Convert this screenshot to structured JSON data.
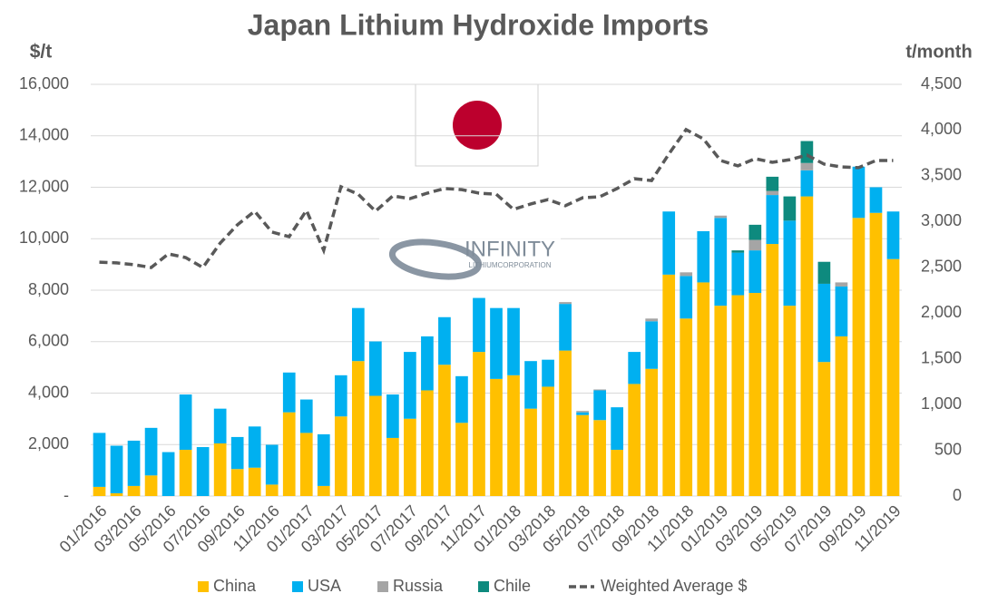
{
  "chart_data": {
    "type": "bar",
    "stacked": true,
    "title": "Japan Lithium Hydroxide Imports",
    "ylabel": "$/t",
    "y2label": "t/month",
    "categories": [
      "01/2016",
      null,
      "03/2016",
      null,
      "05/2016",
      null,
      "07/2016",
      null,
      "09/2016",
      null,
      "11/2016",
      null,
      "01/2017",
      null,
      "03/2017",
      null,
      "05/2017",
      null,
      "07/2017",
      null,
      "09/2017",
      null,
      "11/2017",
      null,
      "01/2018",
      null,
      "03/2018",
      null,
      "05/2018",
      null,
      "07/2018",
      null,
      "09/2018",
      null,
      "11/2018",
      null,
      "01/2019",
      null,
      "03/2019",
      null,
      "05/2019",
      null,
      "07/2019",
      null,
      "09/2019",
      null,
      "11/2019"
    ],
    "series": [
      {
        "name": "China",
        "color": "#ffc000",
        "axis": "y2",
        "values": [
          100,
          30,
          110,
          225,
          0,
          505,
          0,
          575,
          295,
          310,
          125,
          915,
          690,
          110,
          870,
          1475,
          1095,
          635,
          845,
          1155,
          1435,
          800,
          1575,
          1280,
          1320,
          955,
          1195,
          1590,
          885,
          830,
          505,
          1225,
          1390,
          2420,
          1940,
          2335,
          2080,
          2195,
          2220,
          2755,
          2080,
          3275,
          1465,
          1745,
          3040,
          3095,
          2590
        ]
      },
      {
        "name": "USA",
        "color": "#00b0f0",
        "axis": "y2",
        "values": [
          590,
          520,
          495,
          520,
          480,
          605,
          535,
          380,
          350,
          450,
          435,
          435,
          365,
          565,
          450,
          580,
          595,
          475,
          730,
          590,
          520,
          510,
          590,
          775,
          735,
          520,
          295,
          510,
          30,
          325,
          465,
          350,
          520,
          690,
          465,
          560,
          960,
          465,
          465,
          535,
          930,
          285,
          855,
          545,
          560,
          280,
          520
        ]
      },
      {
        "name": "Russia",
        "color": "#a5a5a5",
        "axis": "y2",
        "values": [
          0,
          0,
          0,
          0,
          0,
          0,
          0,
          0,
          0,
          0,
          0,
          0,
          0,
          0,
          0,
          0,
          0,
          0,
          0,
          0,
          0,
          0,
          0,
          0,
          0,
          0,
          0,
          20,
          15,
          10,
          0,
          0,
          30,
          0,
          40,
          0,
          25,
          0,
          115,
          45,
          0,
          80,
          0,
          45,
          0,
          0,
          0
        ]
      },
      {
        "name": "Chile",
        "color": "#0e8a7e",
        "axis": "y2",
        "values": [
          0,
          0,
          0,
          0,
          0,
          0,
          0,
          0,
          0,
          0,
          0,
          0,
          0,
          0,
          0,
          0,
          0,
          0,
          0,
          0,
          0,
          0,
          0,
          0,
          0,
          0,
          0,
          0,
          0,
          0,
          0,
          0,
          0,
          0,
          0,
          0,
          0,
          25,
          165,
          155,
          265,
          240,
          240,
          0,
          0,
          0,
          0
        ]
      },
      {
        "name": "Weighted Average $",
        "color": "#595959",
        "type": "line",
        "dash": true,
        "values": [
          9090,
          9060,
          8990,
          8880,
          9410,
          9270,
          8880,
          9830,
          10540,
          11070,
          10260,
          10080,
          11100,
          9550,
          12020,
          11730,
          11070,
          11660,
          11560,
          11770,
          11950,
          11910,
          11770,
          11730,
          11140,
          11350,
          11520,
          11280,
          11590,
          11630,
          11950,
          12330,
          12260,
          13290,
          14240,
          13880,
          13040,
          12830,
          13110,
          12970,
          13070,
          13250,
          12900,
          12790,
          12760,
          13040,
          13040
        ]
      }
    ],
    "ylim": [
      0,
      16000
    ],
    "yticks": [
      {
        "value": 0,
        "label": "-"
      },
      {
        "value": 2000,
        "label": "2,000"
      },
      {
        "value": 4000,
        "label": "4,000"
      },
      {
        "value": 6000,
        "label": "6,000"
      },
      {
        "value": 8000,
        "label": "8,000"
      },
      {
        "value": 10000,
        "label": "10,000"
      },
      {
        "value": 12000,
        "label": "12,000"
      },
      {
        "value": 14000,
        "label": "14,000"
      },
      {
        "value": 16000,
        "label": "16,000"
      }
    ],
    "y2lim": [
      0,
      4500
    ],
    "y2ticks": [
      0,
      500,
      {
        "value": 1000,
        "label": "1,000"
      },
      {
        "value": 1500,
        "label": "1,500"
      },
      {
        "value": 2000,
        "label": "2,000"
      },
      {
        "value": 2500,
        "label": "2,500"
      },
      {
        "value": 3000,
        "label": "3,000"
      },
      {
        "value": 3500,
        "label": "3,500"
      },
      {
        "value": 4000,
        "label": "4,000"
      },
      {
        "value": 4500,
        "label": "4,500"
      }
    ],
    "grid": true,
    "legend": "bottom"
  },
  "logo": {
    "name": "INFINITY",
    "sub": "LITHIUMCORPORATION"
  }
}
